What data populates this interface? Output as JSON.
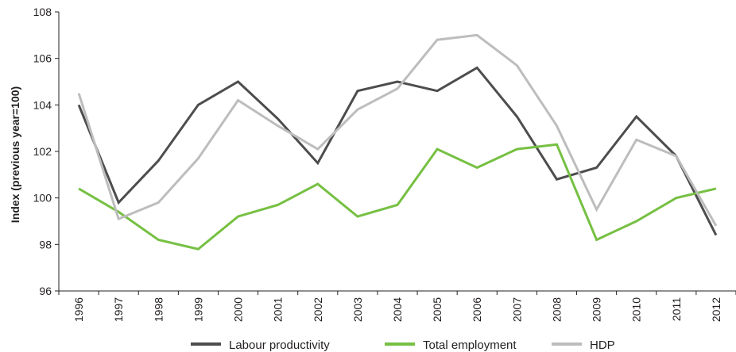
{
  "chart_data": {
    "type": "line",
    "title": "",
    "xlabel": "",
    "ylabel": "Index (previous year=100)",
    "ylim": [
      96,
      108
    ],
    "yticks": [
      96,
      98,
      100,
      102,
      104,
      106,
      108
    ],
    "grid": false,
    "legend_position": "bottom",
    "categories": [
      "1996",
      "1997",
      "1998",
      "1999",
      "2000",
      "2001",
      "2002",
      "2003",
      "2004",
      "2005",
      "2006",
      "2007",
      "2008",
      "2009",
      "2010",
      "2011",
      "2012"
    ],
    "series": [
      {
        "name": "Labour productivity",
        "color": "#4d4d4f",
        "values": [
          104.0,
          99.8,
          101.6,
          104.0,
          105.0,
          103.4,
          101.5,
          104.6,
          105.0,
          104.6,
          105.6,
          103.5,
          100.8,
          101.3,
          103.5,
          101.8,
          98.4
        ]
      },
      {
        "name": "Total employment",
        "color": "#76c043",
        "values": [
          100.4,
          99.4,
          98.2,
          97.8,
          99.2,
          99.7,
          100.6,
          99.2,
          99.7,
          102.1,
          101.3,
          102.1,
          102.3,
          98.2,
          99.0,
          100.0,
          100.4
        ]
      },
      {
        "name": "HDP",
        "color": "#bdbdbd",
        "values": [
          104.5,
          99.1,
          99.8,
          101.7,
          104.2,
          103.1,
          102.1,
          103.8,
          104.7,
          106.8,
          107.0,
          105.7,
          103.1,
          99.5,
          102.5,
          101.8,
          98.8
        ]
      }
    ]
  }
}
